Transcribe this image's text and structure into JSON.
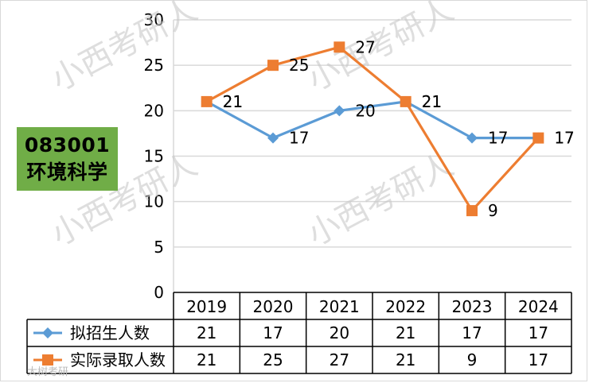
{
  "badge": {
    "code": "083001",
    "name": "环境科学"
  },
  "watermarks": [
    "小西考研人",
    "小西考研人",
    "小西考研人",
    "小西考研人"
  ],
  "footer_credit": "大树考研",
  "colors": {
    "planned": "#5b9bd5",
    "actual": "#ed7d31",
    "badge": "#70ad47",
    "grid": "#d9d9d9"
  },
  "chart_data": {
    "type": "line",
    "title": "",
    "xlabel": "",
    "ylabel": "",
    "ylim": [
      0,
      30
    ],
    "yticks": [
      0,
      5,
      10,
      15,
      20,
      25,
      30
    ],
    "grid": true,
    "legend_placement": "data-table",
    "categories": [
      "2019",
      "2020",
      "2021",
      "2022",
      "2023",
      "2024"
    ],
    "series": [
      {
        "name": "拟招生人数",
        "marker": "diamond",
        "color": "#5b9bd5",
        "values": [
          21,
          17,
          20,
          21,
          17,
          17
        ]
      },
      {
        "name": "实际录取人数",
        "marker": "square",
        "color": "#ed7d31",
        "values": [
          21,
          25,
          27,
          21,
          9,
          17
        ]
      }
    ]
  }
}
